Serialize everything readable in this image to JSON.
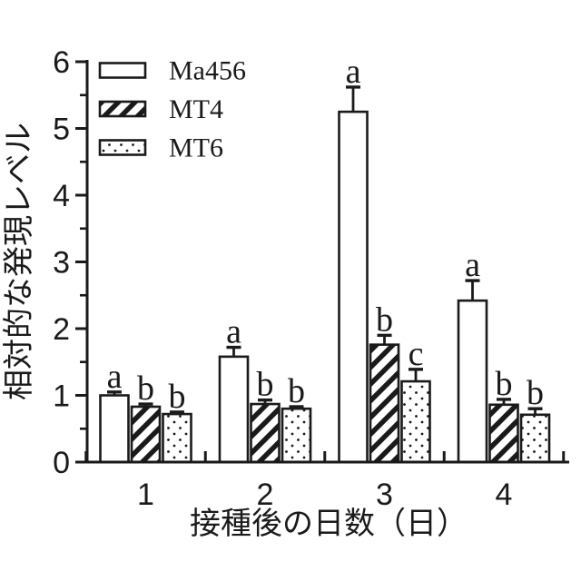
{
  "chart_data": {
    "type": "bar",
    "title": "",
    "xlabel": "接種後の日数（日）",
    "ylabel": "相対的な発現レベル",
    "ylim": [
      0,
      6
    ],
    "yticks": [
      0,
      1,
      2,
      3,
      4,
      5,
      6
    ],
    "y_minor_ticks": [
      0.5,
      1.5,
      2.5,
      3.5,
      4.5,
      5.5
    ],
    "grid": "off",
    "legend_position": "top-left-inside",
    "categories": [
      "1",
      "2",
      "3",
      "4"
    ],
    "series": [
      {
        "name": "Ma456",
        "pattern": "plain-white",
        "values": [
          1.0,
          1.58,
          5.25,
          2.42
        ],
        "errors": [
          0.05,
          0.14,
          0.37,
          0.3
        ],
        "letters": [
          "a",
          "a",
          "a",
          "a"
        ]
      },
      {
        "name": "MT4",
        "pattern": "diagonal-hatch",
        "values": [
          0.83,
          0.87,
          1.76,
          0.86
        ],
        "errors": [
          0.04,
          0.06,
          0.14,
          0.08
        ],
        "letters": [
          "b",
          "b",
          "b",
          "b"
        ]
      },
      {
        "name": "MT6",
        "pattern": "dots",
        "values": [
          0.72,
          0.8,
          1.21,
          0.71
        ],
        "errors": [
          0.03,
          0.03,
          0.18,
          0.09
        ],
        "letters": [
          "b",
          "b",
          "c",
          "b"
        ]
      }
    ],
    "colors": {
      "ink": "#1a1a1a",
      "background": "#ffffff"
    }
  }
}
